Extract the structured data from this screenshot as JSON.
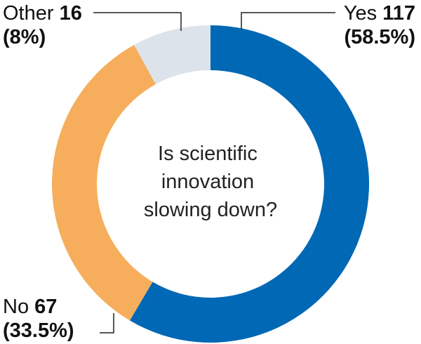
{
  "chart_data": {
    "type": "pie",
    "donut": true,
    "title": "",
    "center_text": [
      "Is scientific",
      "innovation",
      "slowing down?"
    ],
    "start_angle_deg": 0,
    "direction": "clockwise",
    "slices": [
      {
        "name": "Yes",
        "value": 117,
        "percent_label": "(58.5%)",
        "color": "#0068b5"
      },
      {
        "name": "No",
        "value": 67,
        "percent_label": "(33.5%)",
        "color": "#f6ae5c"
      },
      {
        "name": "Other",
        "value": 16,
        "percent_label": "(8%)",
        "color": "#dde3ea"
      }
    ],
    "legend": "none"
  }
}
